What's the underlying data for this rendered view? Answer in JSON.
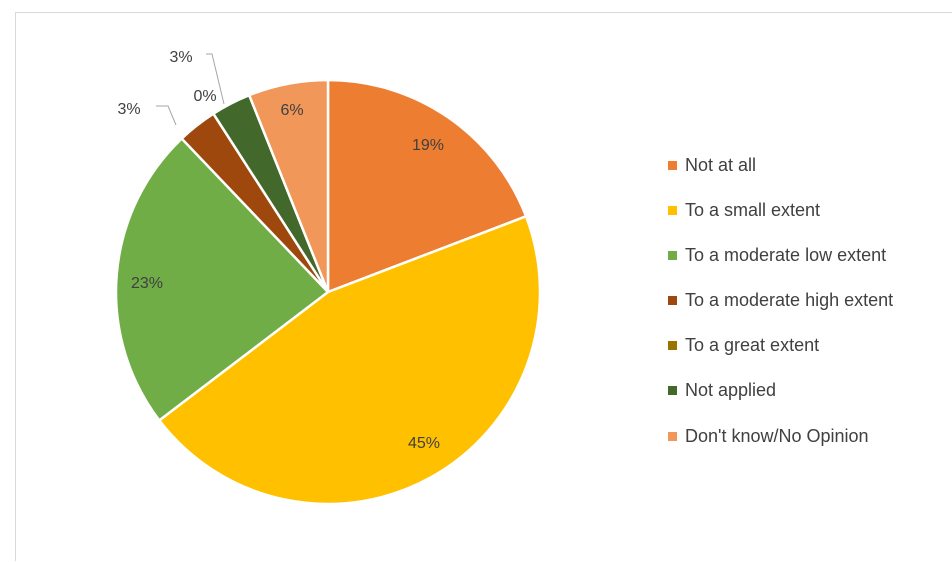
{
  "chart_data": {
    "type": "pie",
    "title": "",
    "legend_position": "right",
    "slices": [
      {
        "label": "Not at all",
        "value": 19,
        "data_label": "19%",
        "color": "#ED7D31"
      },
      {
        "label": "To a small extent",
        "value": 45,
        "data_label": "45%",
        "color": "#FFC000"
      },
      {
        "label": "To a moderate low extent",
        "value": 23,
        "data_label": "23%",
        "color": "#70AD47"
      },
      {
        "label": "To a moderate high extent",
        "value": 3,
        "data_label": "3%",
        "color": "#9E480E"
      },
      {
        "label": "To a great extent",
        "value": 0,
        "data_label": "0%",
        "color": "#997300"
      },
      {
        "label": "Not applied",
        "value": 3,
        "data_label": "3%",
        "color": "#43682B"
      },
      {
        "label": "Don't know/No Opinion",
        "value": 6,
        "data_label": "6%",
        "color": "#F1975A"
      }
    ]
  }
}
